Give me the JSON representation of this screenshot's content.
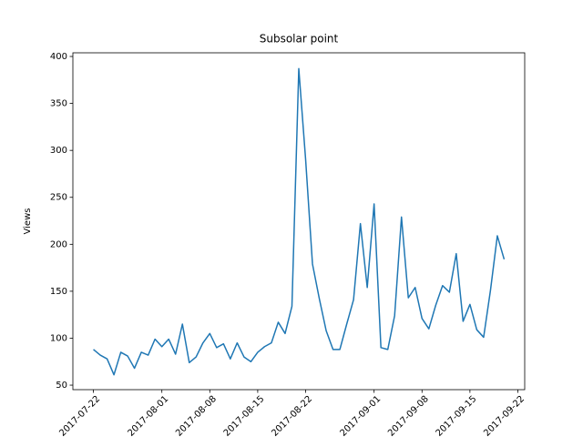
{
  "chart_data": {
    "type": "line",
    "title": "Subsolar point",
    "ylabel": "Views",
    "x": [
      "2017-07-22",
      "2017-07-23",
      "2017-07-24",
      "2017-07-25",
      "2017-07-26",
      "2017-07-27",
      "2017-07-28",
      "2017-07-29",
      "2017-07-30",
      "2017-07-31",
      "2017-08-01",
      "2017-08-02",
      "2017-08-03",
      "2017-08-04",
      "2017-08-05",
      "2017-08-06",
      "2017-08-07",
      "2017-08-08",
      "2017-08-09",
      "2017-08-10",
      "2017-08-11",
      "2017-08-12",
      "2017-08-13",
      "2017-08-14",
      "2017-08-15",
      "2017-08-16",
      "2017-08-17",
      "2017-08-18",
      "2017-08-19",
      "2017-08-20",
      "2017-08-21",
      "2017-08-22",
      "2017-08-23",
      "2017-08-24",
      "2017-08-25",
      "2017-08-26",
      "2017-08-27",
      "2017-08-28",
      "2017-08-29",
      "2017-08-30",
      "2017-08-31",
      "2017-09-01",
      "2017-09-02",
      "2017-09-03",
      "2017-09-04",
      "2017-09-05",
      "2017-09-06",
      "2017-09-07",
      "2017-09-08",
      "2017-09-09",
      "2017-09-10",
      "2017-09-11",
      "2017-09-12",
      "2017-09-13",
      "2017-09-14",
      "2017-09-15",
      "2017-09-16",
      "2017-09-17",
      "2017-09-18",
      "2017-09-19",
      "2017-09-20"
    ],
    "values": [
      88,
      82,
      78,
      61,
      85,
      81,
      68,
      85,
      82,
      99,
      91,
      99,
      83,
      115,
      74,
      80,
      95,
      105,
      90,
      94,
      78,
      95,
      80,
      75,
      85,
      91,
      95,
      117,
      105,
      134,
      387,
      290,
      179,
      142,
      108,
      88,
      88,
      115,
      141,
      222,
      154,
      243,
      90,
      88,
      124,
      229,
      143,
      154,
      121,
      110,
      135,
      156,
      149,
      190,
      118,
      136,
      109,
      101,
      151,
      209,
      184
    ],
    "color": "#1f77b4",
    "xlim": [
      "2017-07-19",
      "2017-09-23"
    ],
    "xticks": [
      "2017-07-22",
      "2017-08-01",
      "2017-08-08",
      "2017-08-15",
      "2017-08-22",
      "2017-09-01",
      "2017-09-08",
      "2017-09-15",
      "2017-09-22"
    ],
    "ylim": [
      45.2,
      403.9
    ],
    "yticks": [
      50,
      100,
      150,
      200,
      250,
      300,
      350,
      400
    ]
  }
}
